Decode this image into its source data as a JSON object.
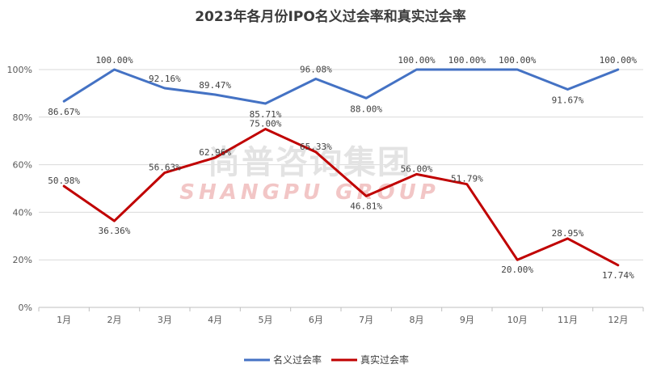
{
  "chart_data": {
    "type": "line",
    "title": "2023年各月份IPO名义过会率和真实过会率",
    "categories": [
      "1月",
      "2月",
      "3月",
      "4月",
      "5月",
      "6月",
      "7月",
      "8月",
      "9月",
      "10月",
      "11月",
      "12月"
    ],
    "y_ticks": [
      "0%",
      "20%",
      "40%",
      "60%",
      "80%",
      "100%"
    ],
    "ylim": [
      0,
      100
    ],
    "grid": true,
    "legend_position": "bottom",
    "series": [
      {
        "name": "名义过会率",
        "color": "#4472c4",
        "values": [
          86.67,
          100.0,
          92.16,
          89.47,
          85.71,
          96.08,
          88.0,
          100.0,
          100.0,
          100.0,
          91.67,
          100.0
        ],
        "labels": [
          "86.67%",
          "100.00%",
          "92.16%",
          "89.47%",
          "85.71%",
          "96.08%",
          "88.00%",
          "100.00%",
          "100.00%",
          "100.00%",
          "91.67%",
          "100.00%"
        ]
      },
      {
        "name": "真实过会率",
        "color": "#c00000",
        "values": [
          50.98,
          36.36,
          56.63,
          62.96,
          75.0,
          65.33,
          46.81,
          56.0,
          51.79,
          20.0,
          28.95,
          17.74
        ],
        "labels": [
          "50.98%",
          "36.36%",
          "56.63%",
          "62.96%",
          "75.00%",
          "65.33%",
          "46.81%",
          "56.00%",
          "51.79%",
          "20.00%",
          "28.95%",
          "17.74%"
        ]
      }
    ]
  },
  "watermark": {
    "cn": "尚普咨询集团",
    "en": "SHANGPU GROUP"
  }
}
